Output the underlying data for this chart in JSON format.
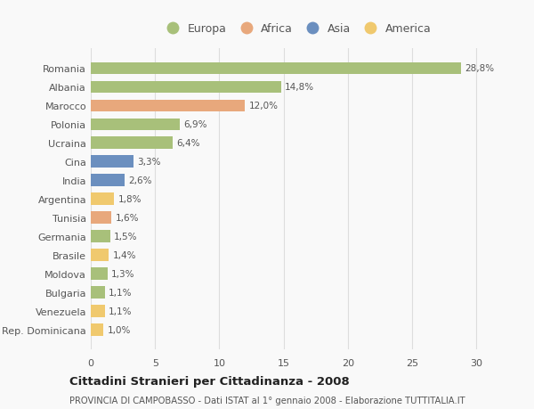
{
  "categories": [
    "Romania",
    "Albania",
    "Marocco",
    "Polonia",
    "Ucraina",
    "Cina",
    "India",
    "Argentina",
    "Tunisia",
    "Germania",
    "Brasile",
    "Moldova",
    "Bulgaria",
    "Venezuela",
    "Rep. Dominicana"
  ],
  "values": [
    28.8,
    14.8,
    12.0,
    6.9,
    6.4,
    3.3,
    2.6,
    1.8,
    1.6,
    1.5,
    1.4,
    1.3,
    1.1,
    1.1,
    1.0
  ],
  "labels": [
    "28,8%",
    "14,8%",
    "12,0%",
    "6,9%",
    "6,4%",
    "3,3%",
    "2,6%",
    "1,8%",
    "1,6%",
    "1,5%",
    "1,4%",
    "1,3%",
    "1,1%",
    "1,1%",
    "1,0%"
  ],
  "colors": [
    "#a8c07a",
    "#a8c07a",
    "#e8a87c",
    "#a8c07a",
    "#a8c07a",
    "#6b8fbf",
    "#6b8fbf",
    "#f0c96e",
    "#e8a87c",
    "#a8c07a",
    "#f0c96e",
    "#a8c07a",
    "#a8c07a",
    "#f0c96e",
    "#f0c96e"
  ],
  "continents": [
    "Europa",
    "Africa",
    "Asia",
    "America"
  ],
  "legend_colors": [
    "#a8c07a",
    "#e8a87c",
    "#6b8fbf",
    "#f0c96e"
  ],
  "title": "Cittadini Stranieri per Cittadinanza - 2008",
  "subtitle": "PROVINCIA DI CAMPOBASSO - Dati ISTAT al 1° gennaio 2008 - Elaborazione TUTTITALIA.IT",
  "xlim": [
    0,
    32
  ],
  "xticks": [
    0,
    5,
    10,
    15,
    20,
    25,
    30
  ],
  "bg_color": "#f9f9f9",
  "grid_color": "#dddddd"
}
